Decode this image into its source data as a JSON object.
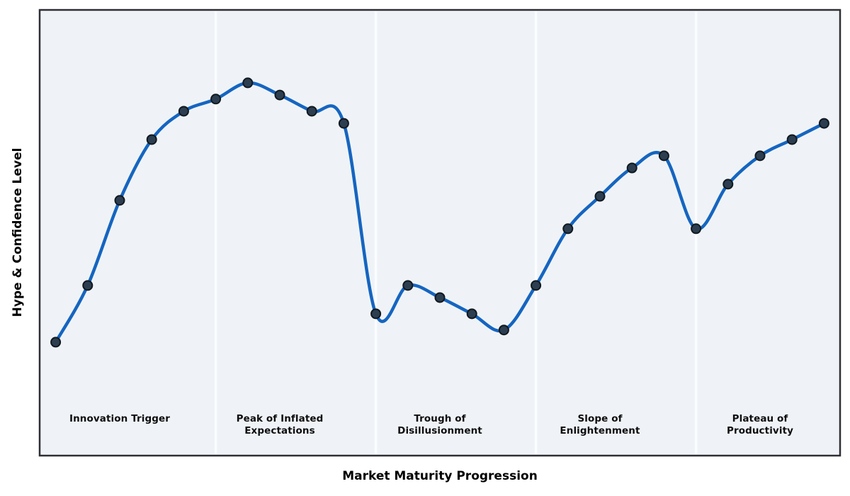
{
  "figure": {
    "background": "#ffffff",
    "plot_background": "#eff3f7",
    "frame_color": "#2e2e34",
    "divider_color": "#fbfdff"
  },
  "chart_data": {
    "type": "line",
    "title": "",
    "xlabel": "Market Maturity Progression",
    "ylabel": "Hype & Confidence Level",
    "x": [
      0,
      1,
      2,
      3,
      4,
      5,
      6,
      7,
      8,
      9,
      10,
      11,
      12,
      13,
      14,
      15,
      16,
      17,
      18,
      19,
      20,
      21,
      22,
      23,
      24
    ],
    "values": [
      28,
      42,
      63,
      78,
      85,
      88,
      92,
      89,
      85,
      82,
      35,
      42,
      39,
      35,
      31,
      42,
      56,
      64,
      71,
      74,
      56,
      67,
      74,
      78,
      82
    ],
    "xlim": [
      -0.5,
      24.5
    ],
    "ylim": [
      0,
      110
    ],
    "grid": false,
    "legend": "none",
    "smoothing": "spline",
    "line_color": "#1565c0",
    "line_width": 4.5,
    "marker": {
      "shape": "circle",
      "radius": 6.5,
      "fill": "#2c3e50",
      "edge": "#10181f",
      "edge_width": 2
    },
    "phase_dividers_x": [
      5,
      10,
      15,
      20
    ],
    "phases": [
      {
        "label": "Innovation Trigger",
        "center_x": 2
      },
      {
        "label": "Peak of Inflated\nExpectations",
        "center_x": 7
      },
      {
        "label": "Trough of\nDisillusionment",
        "center_x": 12
      },
      {
        "label": "Slope of\nEnlightenment",
        "center_x": 17
      },
      {
        "label": "Plateau of\nProductivity",
        "center_x": 22
      }
    ]
  }
}
